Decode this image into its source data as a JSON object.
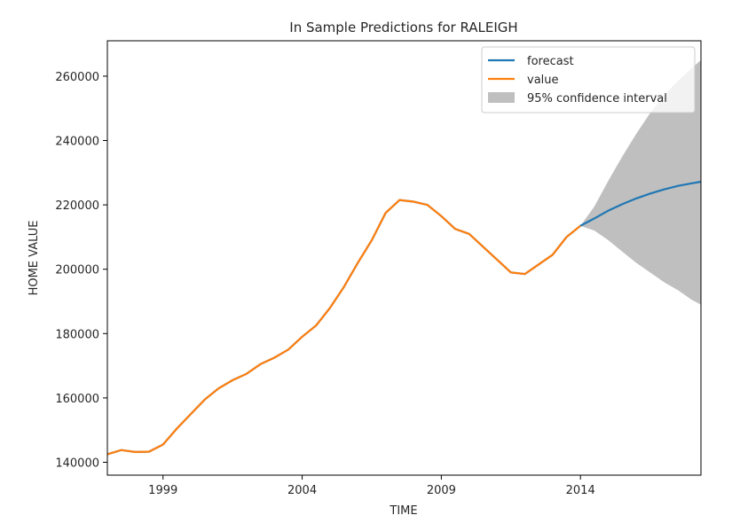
{
  "chart_data": {
    "type": "line",
    "title": "In Sample Predictions for RALEIGH",
    "xlabel": "TIME",
    "ylabel": "HOME VALUE",
    "xlim": [
      1997.0,
      2018.33
    ],
    "ylim": [
      136000,
      271000
    ],
    "x_ticks": [
      {
        "value": 1999,
        "label": "1999"
      },
      {
        "value": 2004,
        "label": "2004"
      },
      {
        "value": 2009,
        "label": "2009"
      },
      {
        "value": 2014,
        "label": "2014"
      }
    ],
    "y_ticks": [
      {
        "value": 140000,
        "label": "140000"
      },
      {
        "value": 160000,
        "label": "160000"
      },
      {
        "value": 180000,
        "label": "180000"
      },
      {
        "value": 200000,
        "label": "200000"
      },
      {
        "value": 220000,
        "label": "220000"
      },
      {
        "value": 240000,
        "label": "240000"
      },
      {
        "value": 260000,
        "label": "260000"
      }
    ],
    "grid": false,
    "legend_position": "top-right",
    "series": [
      {
        "name": "forecast",
        "color": "#1f77b4",
        "x": [
          1997.0,
          1997.5,
          1998.0,
          1998.5,
          1999.0,
          1999.5,
          2000.0,
          2000.5,
          2001.0,
          2001.5,
          2002.0,
          2002.5,
          2003.0,
          2003.5,
          2004.0,
          2004.5,
          2005.0,
          2005.5,
          2006.0,
          2006.5,
          2007.0,
          2007.5,
          2008.0,
          2008.5,
          2009.0,
          2009.5,
          2010.0,
          2010.5,
          2011.0,
          2011.5,
          2012.0,
          2012.5,
          2013.0,
          2013.5,
          2014.0,
          2014.5,
          2015.0,
          2015.5,
          2016.0,
          2016.5,
          2017.0,
          2017.5,
          2018.0,
          2018.33
        ],
        "y": [
          142500,
          143800,
          143200,
          143300,
          145500,
          150500,
          155000,
          159500,
          163000,
          165500,
          167500,
          170500,
          172500,
          175000,
          179000,
          182500,
          188000,
          194500,
          202000,
          209000,
          217500,
          221500,
          221000,
          220000,
          216500,
          212500,
          211000,
          207000,
          203000,
          199000,
          198500,
          201500,
          204500,
          210000,
          213500,
          215800,
          218200,
          220200,
          222000,
          223500,
          224800,
          225900,
          226700,
          227200
        ]
      },
      {
        "name": "value",
        "color": "#ff7f0e",
        "x": [
          1997.0,
          1997.5,
          1998.0,
          1998.5,
          1999.0,
          1999.5,
          2000.0,
          2000.5,
          2001.0,
          2001.5,
          2002.0,
          2002.5,
          2003.0,
          2003.5,
          2004.0,
          2004.5,
          2005.0,
          2005.5,
          2006.0,
          2006.5,
          2007.0,
          2007.5,
          2008.0,
          2008.5,
          2009.0,
          2009.5,
          2010.0,
          2010.5,
          2011.0,
          2011.5,
          2012.0,
          2012.5,
          2013.0,
          2013.5,
          2014.0
        ],
        "y": [
          142500,
          143800,
          143200,
          143300,
          145500,
          150500,
          155000,
          159500,
          163000,
          165500,
          167500,
          170500,
          172500,
          175000,
          179000,
          182500,
          188000,
          194500,
          202000,
          209000,
          217500,
          221500,
          221000,
          220000,
          216500,
          212500,
          211000,
          207000,
          203000,
          199000,
          198500,
          201500,
          204500,
          210000,
          213500
        ]
      }
    ],
    "confidence_interval": {
      "name": "95% confidence interval",
      "color": "#808080",
      "x": [
        2014.0,
        2014.5,
        2015.0,
        2015.5,
        2016.0,
        2016.5,
        2017.0,
        2017.5,
        2018.0,
        2018.33
      ],
      "lower": [
        213500,
        212000,
        209000,
        205500,
        202000,
        199000,
        196000,
        193500,
        190500,
        189000
      ],
      "upper": [
        213500,
        219500,
        227500,
        235000,
        242000,
        248500,
        254000,
        258500,
        262500,
        265000
      ]
    }
  }
}
